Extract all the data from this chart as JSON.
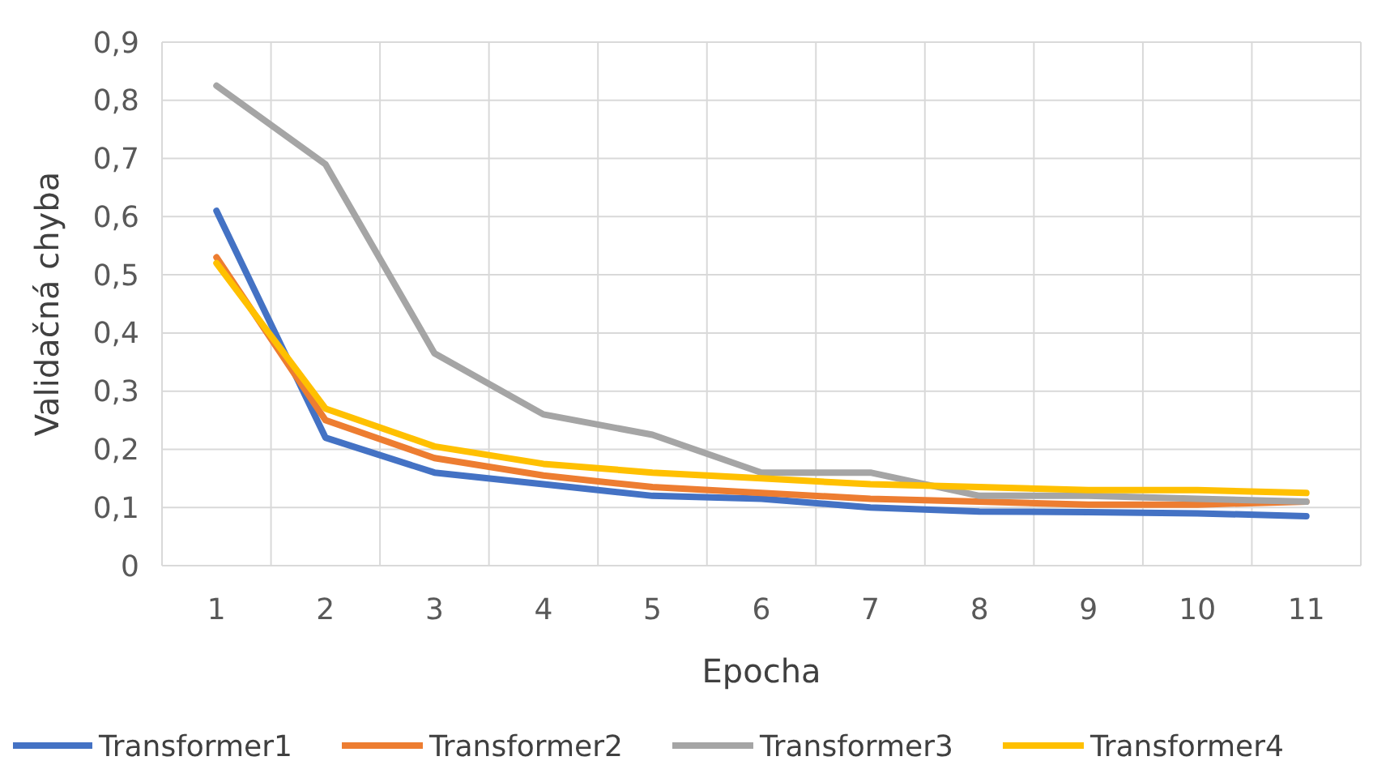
{
  "chart_data": {
    "type": "line",
    "xlabel": "Epocha",
    "ylabel": "Validačná chyba",
    "categories": [
      "1",
      "2",
      "3",
      "4",
      "5",
      "6",
      "7",
      "8",
      "9",
      "10",
      "11"
    ],
    "series": [
      {
        "name": "Transformer1",
        "color": "#4472c4",
        "values": [
          0.61,
          0.22,
          0.16,
          0.14,
          0.12,
          0.115,
          0.1,
          0.093,
          0.092,
          0.09,
          0.085
        ]
      },
      {
        "name": "Transformer2",
        "color": "#ed7d31",
        "values": [
          0.53,
          0.25,
          0.185,
          0.155,
          0.135,
          0.125,
          0.115,
          0.11,
          0.105,
          0.105,
          0.11
        ]
      },
      {
        "name": "Transformer3",
        "color": "#a5a5a5",
        "values": [
          0.825,
          0.69,
          0.365,
          0.26,
          0.225,
          0.16,
          0.16,
          0.12,
          0.12,
          0.115,
          0.11
        ]
      },
      {
        "name": "Transformer4",
        "color": "#ffc000",
        "values": [
          0.52,
          0.27,
          0.205,
          0.175,
          0.16,
          0.15,
          0.14,
          0.135,
          0.13,
          0.13,
          0.125
        ]
      }
    ],
    "ylim": [
      0,
      0.9
    ],
    "yticks": [
      0,
      {
        "value": 0.1,
        "label": "0,1"
      },
      {
        "value": 0.2,
        "label": "0,2"
      },
      {
        "value": 0.3,
        "label": "0,3"
      },
      {
        "value": 0.4,
        "label": "0,4"
      },
      {
        "value": 0.5,
        "label": "0,5"
      },
      {
        "value": 0.6,
        "label": "0,6"
      },
      {
        "value": 0.7,
        "label": "0,7"
      },
      {
        "value": 0.8,
        "label": "0,8"
      },
      {
        "value": 0.9,
        "label": "0,9"
      }
    ],
    "grid": true,
    "legend": "bottom",
    "marker": "none",
    "line_style": "solid"
  }
}
